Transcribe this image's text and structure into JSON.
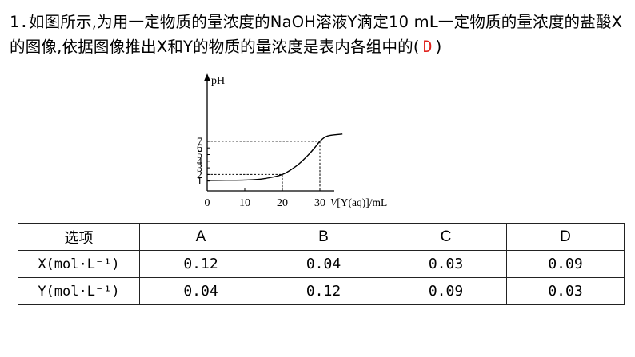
{
  "question": {
    "number": "1.",
    "text_before": "如图所示,为用一定物质的量浓度的NaOH溶液Y滴定10 mL一定物质的量浓度的盐酸X的图像,依据图像推出X和Y的物质的量浓度是表内各组中的(",
    "answer": "D",
    "text_after": ")"
  },
  "chart_data": {
    "type": "line",
    "ylabel": "pH",
    "xlabel_italic": "V",
    "xlabel_rest": "[Y(aq)]/mL",
    "x_ticks": [
      "0",
      "10",
      "20",
      "30"
    ],
    "y_ticks": [
      "1",
      "2",
      "3",
      "4",
      "5",
      "6",
      "7"
    ],
    "xlim": [
      0,
      35
    ],
    "ylim": [
      0,
      8
    ],
    "points": [
      {
        "x": 0,
        "y": 1.1
      },
      {
        "x": 5,
        "y": 1.12
      },
      {
        "x": 10,
        "y": 1.16
      },
      {
        "x": 15,
        "y": 1.35
      },
      {
        "x": 20,
        "y": 2.0
      },
      {
        "x": 24,
        "y": 3.4
      },
      {
        "x": 27,
        "y": 5.0
      },
      {
        "x": 29,
        "y": 6.3
      },
      {
        "x": 30,
        "y": 7.0
      },
      {
        "x": 32,
        "y": 7.8
      },
      {
        "x": 36,
        "y": 8.1
      }
    ],
    "reference_lines": [
      {
        "x": 20,
        "y": 2
      },
      {
        "x": 30,
        "y": 7
      }
    ],
    "grid": false
  },
  "table": {
    "headers": [
      "选项",
      "A",
      "B",
      "C",
      "D"
    ],
    "rows": [
      {
        "label": "X(mol·L⁻¹)",
        "values": [
          "0.12",
          "0.04",
          "0.03",
          "0.09"
        ]
      },
      {
        "label": "Y(mol·L⁻¹)",
        "values": [
          "0.04",
          "0.12",
          "0.09",
          "0.03"
        ]
      }
    ]
  }
}
